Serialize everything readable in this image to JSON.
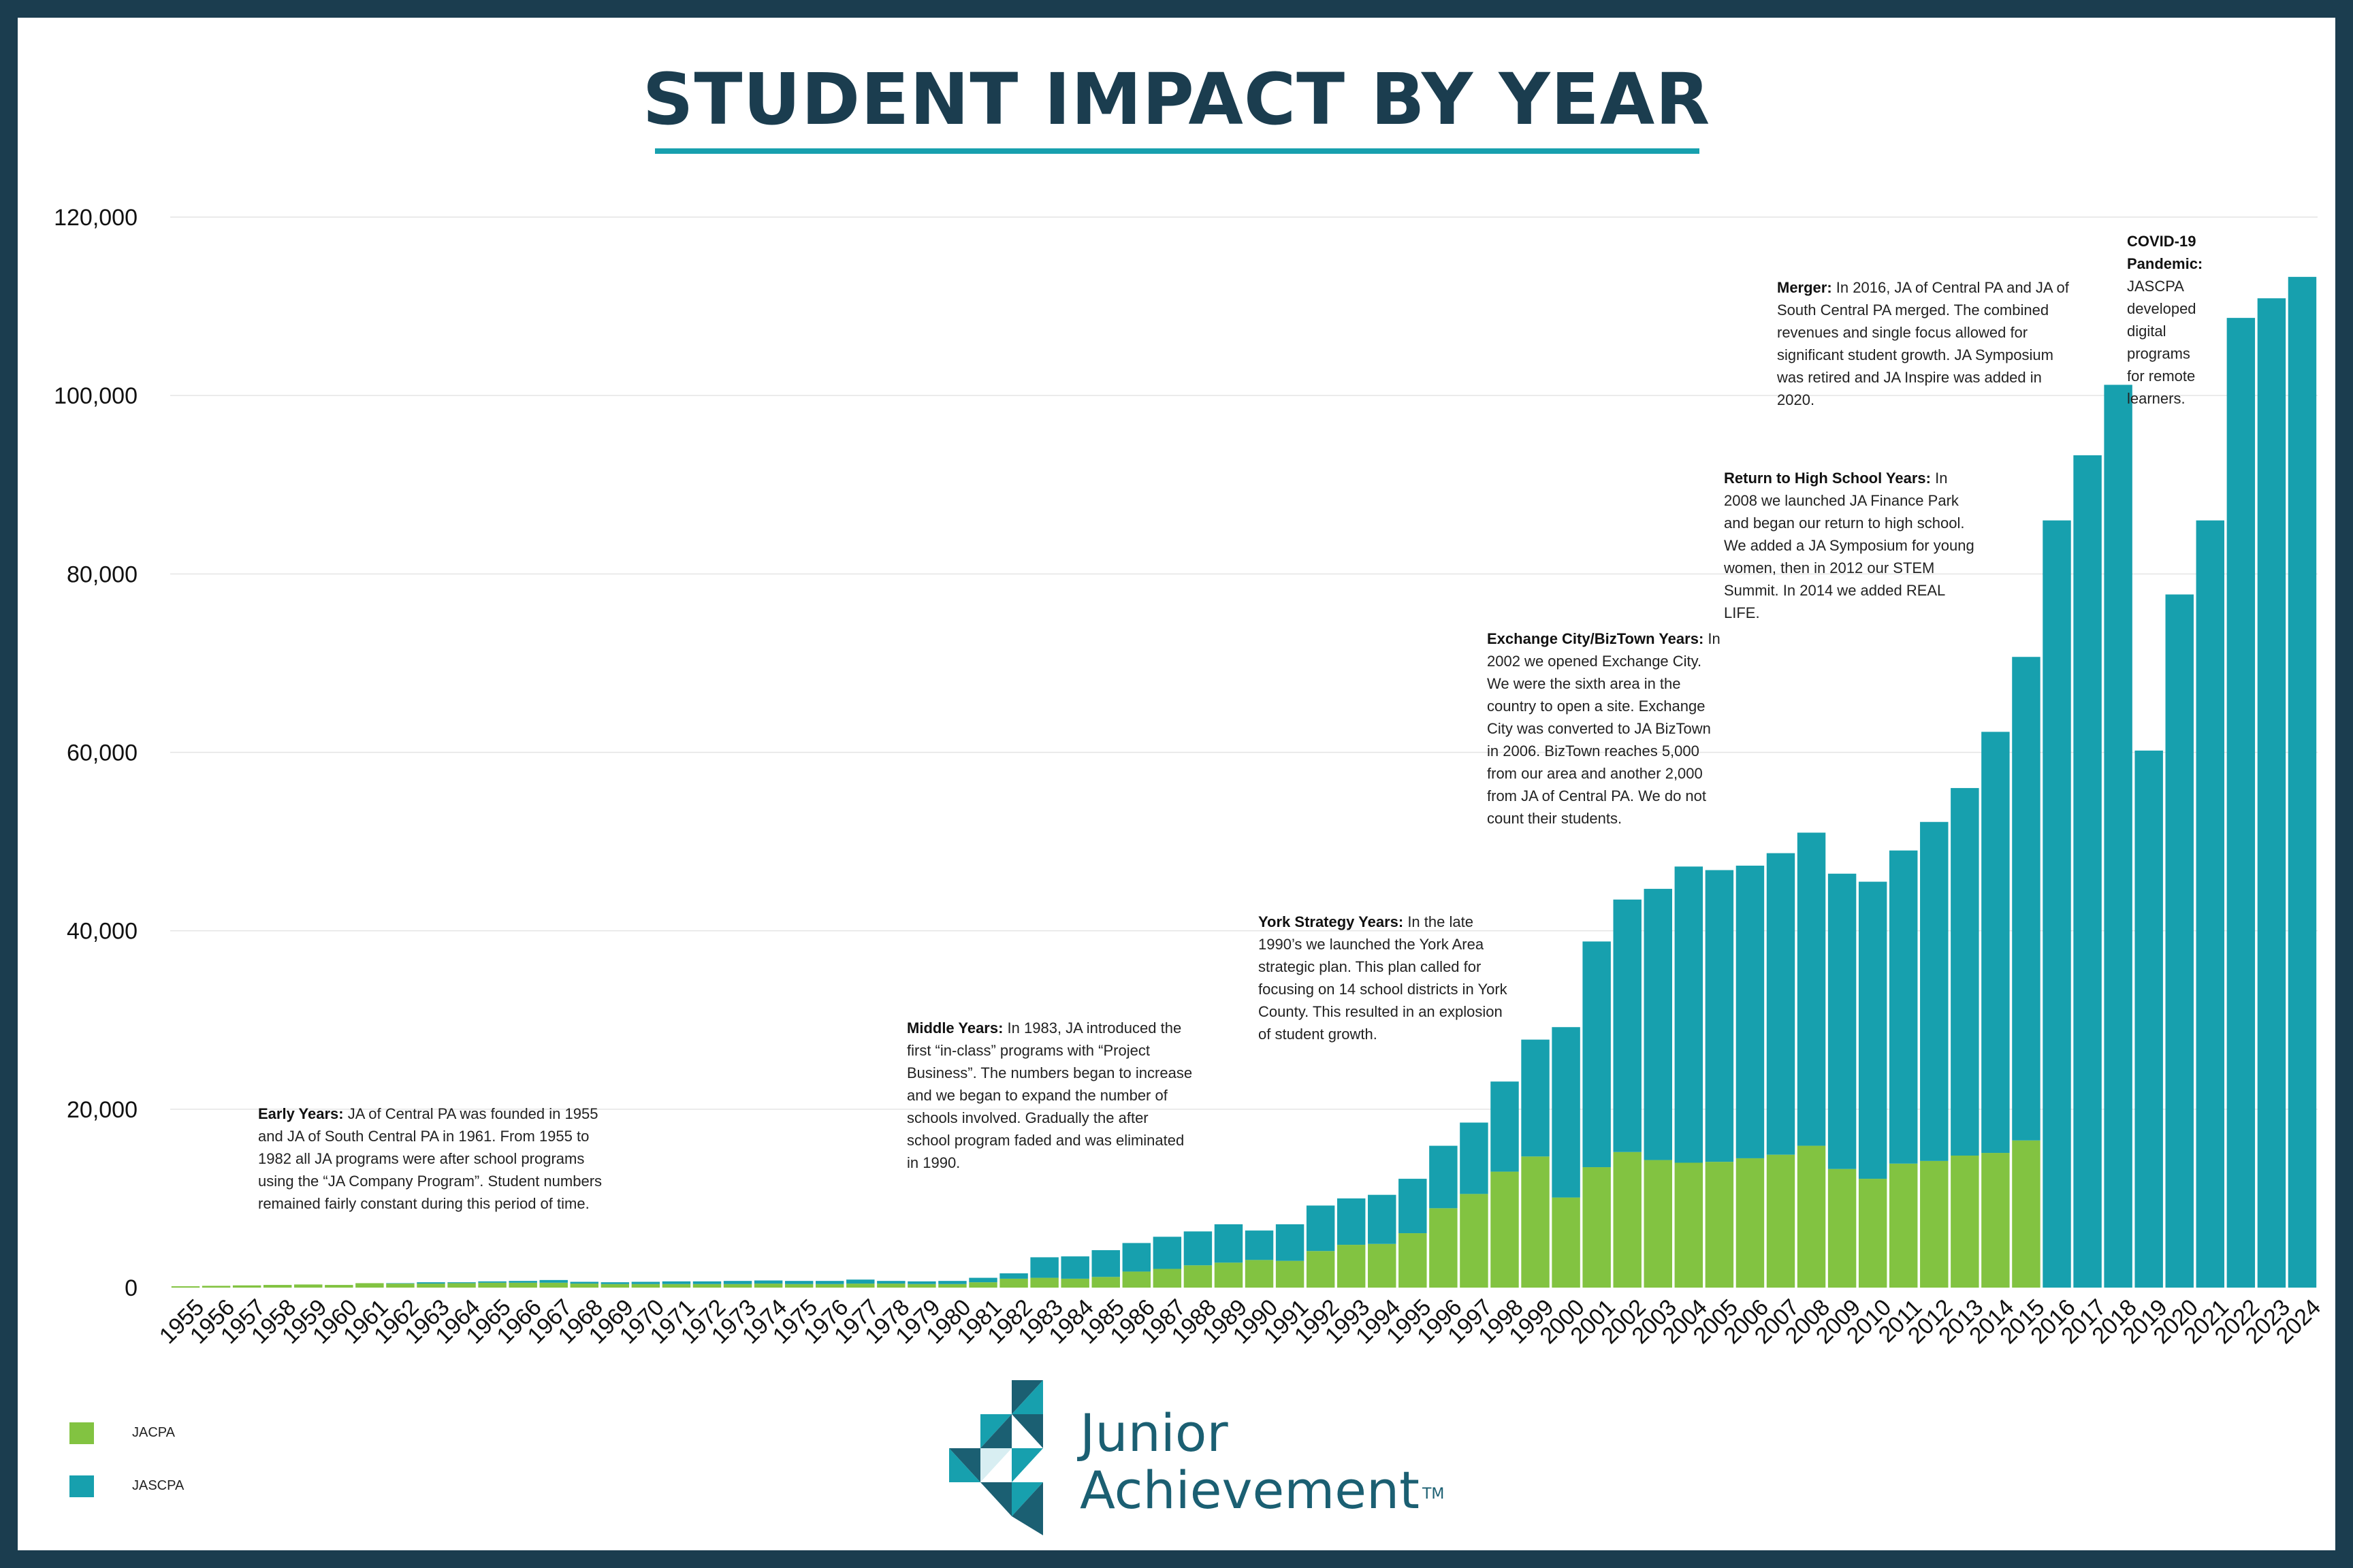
{
  "title": "STUDENT IMPACT BY YEAR",
  "colors": {
    "jacpa": "#82c341",
    "jascpa": "#17a0ae",
    "frame": "#1b3d4f",
    "brand_text": "#1b5f72"
  },
  "chart_data": {
    "type": "bar",
    "stacked": true,
    "title": "STUDENT IMPACT BY YEAR",
    "xlabel": "",
    "ylabel": "",
    "ylim": [
      0,
      120000
    ],
    "yticks": [
      "0",
      "20,000",
      "40,000",
      "60,000",
      "80,000",
      "100,000",
      "120,000"
    ],
    "grid": true,
    "legend_position": "bottom-left",
    "categories": [
      "1955",
      "1956",
      "1957",
      "1958",
      "1959",
      "1960",
      "1961",
      "1962",
      "1963",
      "1964",
      "1965",
      "1966",
      "1967",
      "1968",
      "1969",
      "1970",
      "1971",
      "1972",
      "1973",
      "1974",
      "1975",
      "1976",
      "1977",
      "1978",
      "1979",
      "1980",
      "1981",
      "1982",
      "1983",
      "1984",
      "1985",
      "1986",
      "1987",
      "1988",
      "1989",
      "1990",
      "1991",
      "1992",
      "1993",
      "1994",
      "1995",
      "1996",
      "1997",
      "1998",
      "1999",
      "2000",
      "2001",
      "2002",
      "2003",
      "2004",
      "2005",
      "2006",
      "2007",
      "2008",
      "2009",
      "2010",
      "2011",
      "2012",
      "2013",
      "2014",
      "2015",
      "2016",
      "2017",
      "2018",
      "2019",
      "2020",
      "2021",
      "2022",
      "2023",
      "2024"
    ],
    "series": [
      {
        "name": "JACPA",
        "color": "#82c341",
        "values": [
          150,
          200,
          250,
          300,
          350,
          300,
          500,
          450,
          450,
          500,
          550,
          550,
          550,
          450,
          400,
          400,
          400,
          400,
          400,
          450,
          400,
          400,
          450,
          450,
          400,
          400,
          600,
          1000,
          1100,
          1000,
          1200,
          1800,
          2100,
          2500,
          2800,
          3100,
          3000,
          4100,
          4800,
          4900,
          6100,
          8900,
          10500,
          13000,
          14700,
          10100,
          13500,
          15200,
          14300,
          14000,
          14100,
          14500,
          14900,
          15900,
          13300,
          12200,
          13900,
          14200,
          14800,
          15100,
          16500,
          0,
          0,
          0,
          0,
          0,
          0,
          0,
          0,
          0
        ]
      },
      {
        "name": "JASCPA",
        "color": "#17a0ae",
        "values": [
          0,
          0,
          0,
          0,
          0,
          0,
          0,
          50,
          150,
          100,
          150,
          200,
          300,
          200,
          200,
          250,
          300,
          300,
          350,
          350,
          350,
          350,
          450,
          300,
          300,
          350,
          500,
          600,
          2300,
          2500,
          3000,
          3200,
          3600,
          3800,
          4300,
          3300,
          4100,
          5100,
          5200,
          5500,
          6100,
          7000,
          8000,
          10100,
          13100,
          19100,
          25300,
          28300,
          30400,
          33200,
          32700,
          32800,
          33800,
          35100,
          33100,
          33300,
          35100,
          38000,
          41200,
          47200,
          54200,
          86000,
          93300,
          101200,
          60200,
          77700,
          86000,
          108700,
          110900,
          113300
        ]
      }
    ]
  },
  "annotations": {
    "early": {
      "title": "Early Years:",
      "text": " JA of Central PA was founded in 1955 and JA of South Central PA in 1961. From 1955 to 1982 all JA programs were after school programs using the “JA Company Program”. Student numbers remained fairly constant during this period of time."
    },
    "middle": {
      "title": "Middle Years:",
      "text": " In 1983, JA introduced the first “in-class” programs with “Project Business”. The numbers began to increase and we began to expand the number of schools involved. Gradually the after school program faded and was eliminated in 1990."
    },
    "york": {
      "title": "York Strategy Years:",
      "text": " In the late 1990’s we launched the York Area strategic plan. This plan called for focusing on 14 school districts in York County. This resulted in an explosion of student growth."
    },
    "exchange": {
      "title": "Exchange City/BizTown Years:",
      "text": " In 2002 we opened Exchange City. We were the sixth area in the country to open a site. Exchange City was converted to JA BizTown in 2006. BizTown reaches 5,000 from our area and another 2,000 from JA of Central PA. We do not count their students."
    },
    "highschool": {
      "title": "Return to High School Years:",
      "text": " In 2008 we launched JA Finance Park and began our return to high school. We added a JA Symposium for young women, then in 2012 our STEM Summit. In 2014 we added REAL LIFE."
    },
    "merger": {
      "title": "Merger:",
      "text": " In 2016, JA of Central PA and JA of South Central PA merged. The combined revenues and single focus allowed for significant student growth. JA Symposium was retired and JA Inspire was added in 2020."
    },
    "covid": {
      "title": "COVID-19 Pandemic:",
      "text": " JASCPA developed digital programs for remote learners."
    }
  },
  "legend": [
    {
      "label": "JACPA",
      "color": "#82c341"
    },
    {
      "label": "JASCPA",
      "color": "#17a0ae"
    }
  ],
  "logo": {
    "line1": "Junior",
    "line2": "Achievement",
    "tm": "TM",
    "icon": "ja-triangles-logo-icon"
  }
}
